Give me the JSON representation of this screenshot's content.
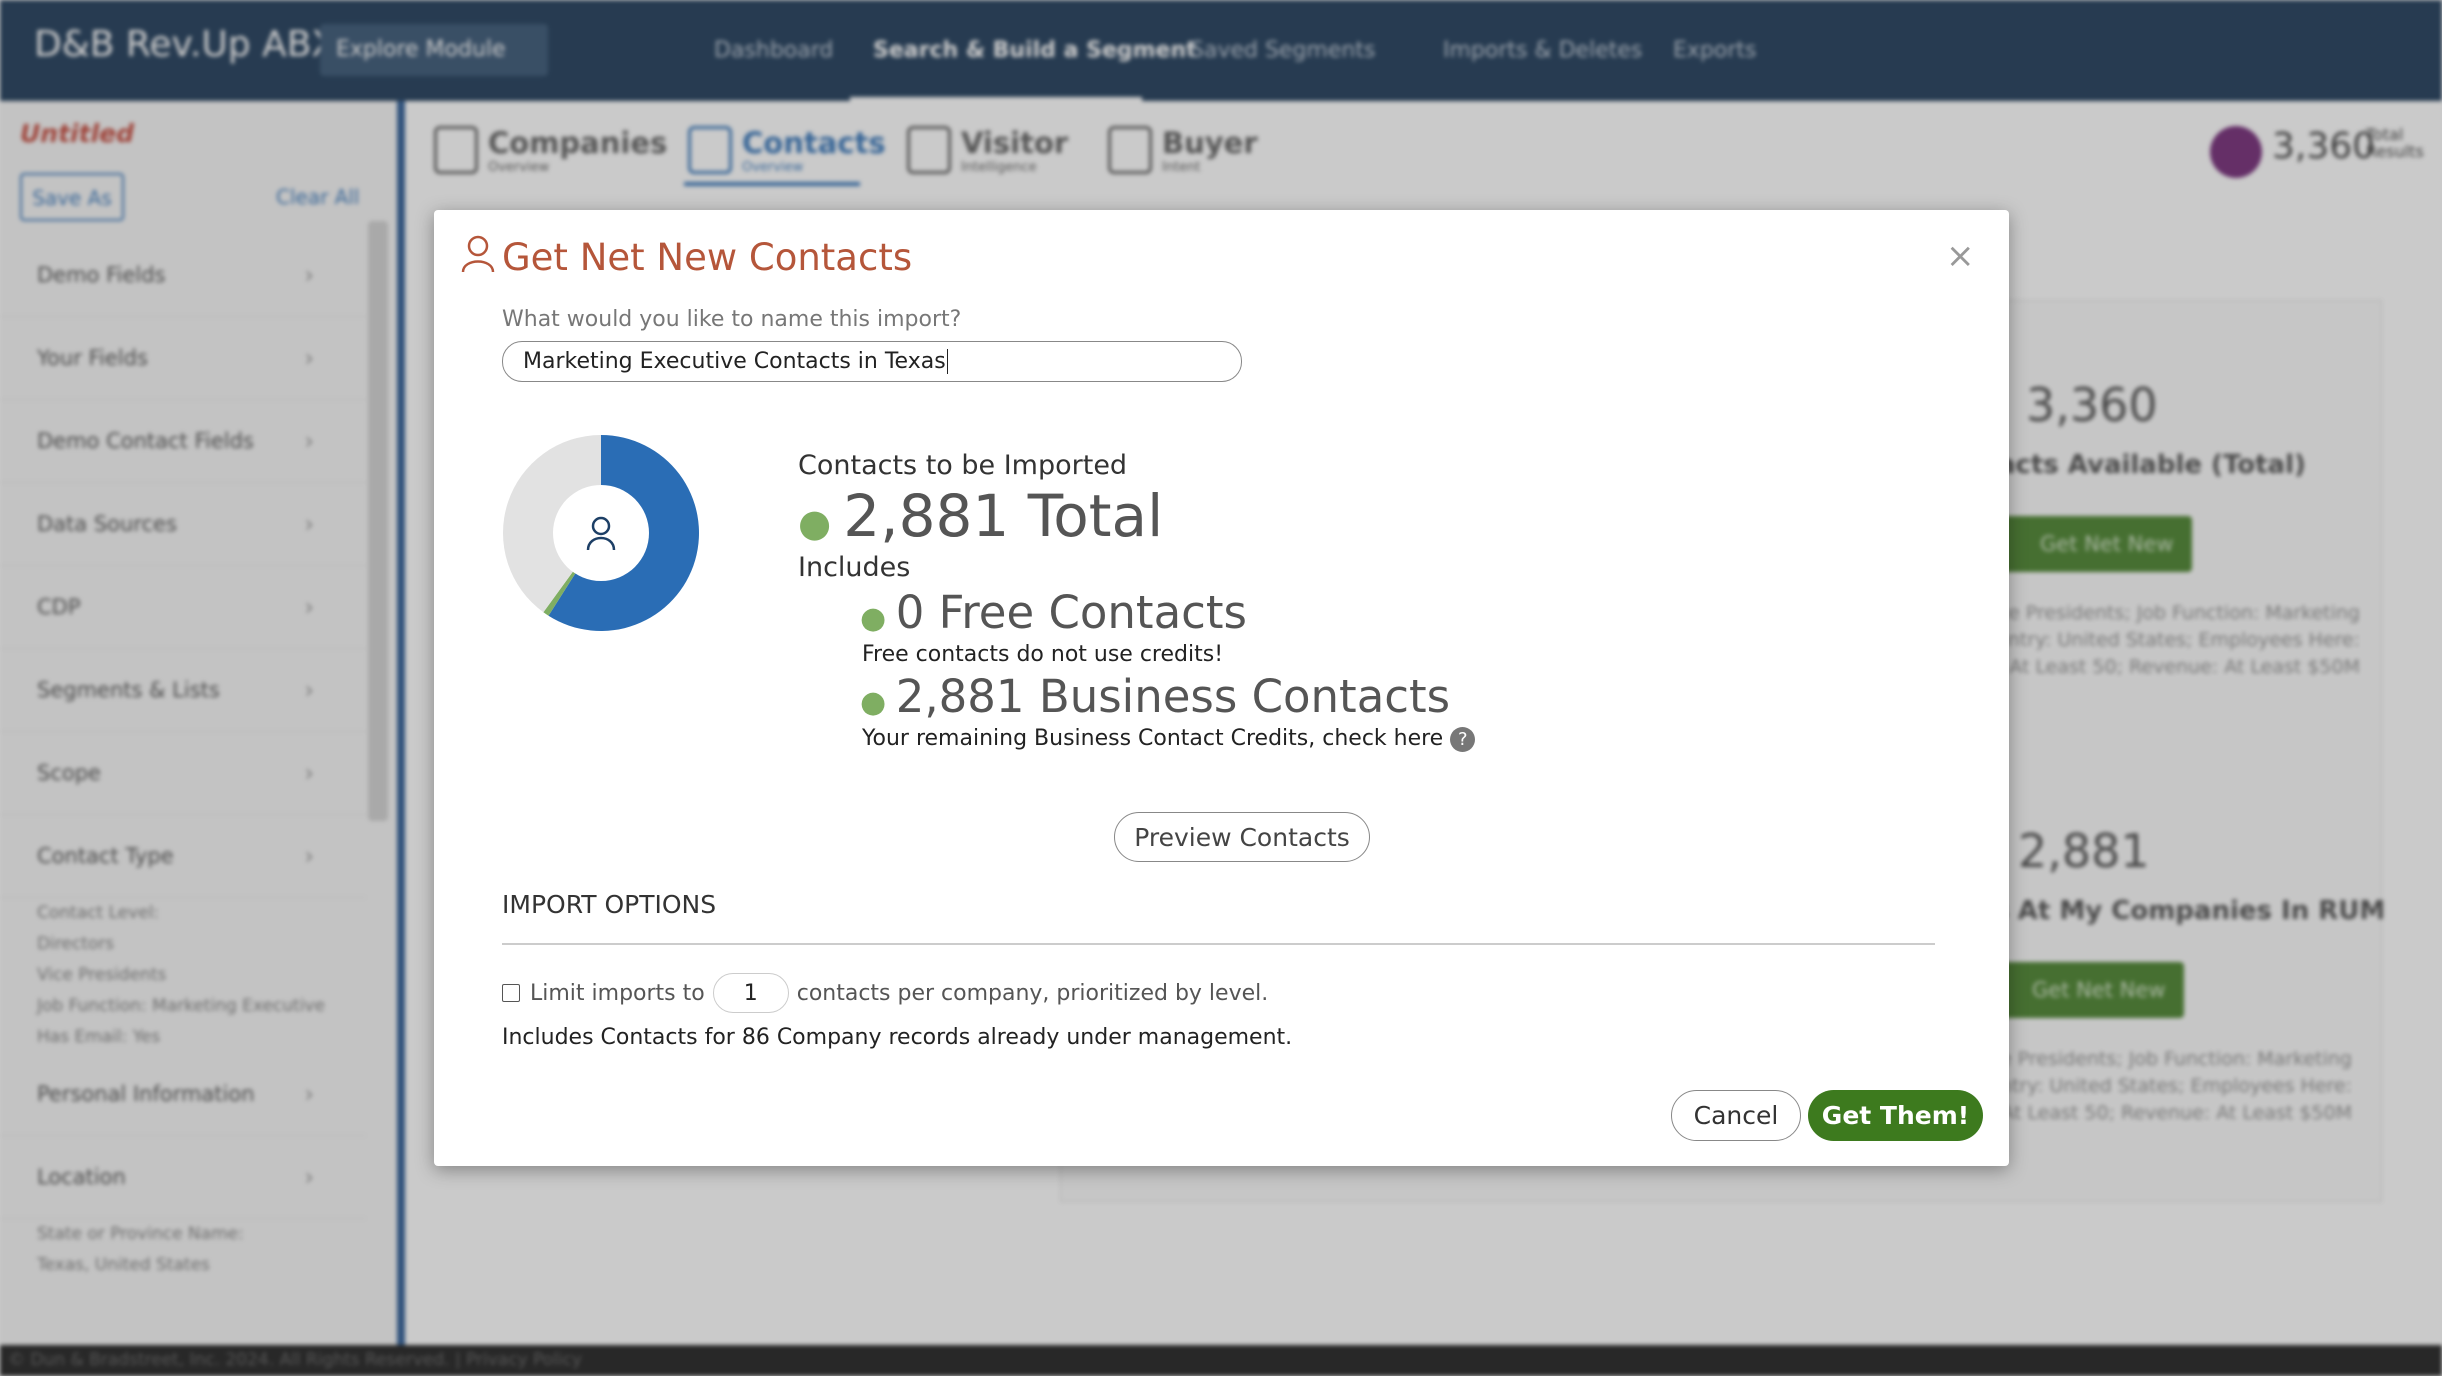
{
  "nav": {
    "brand": "D&B Rev.Up ABX",
    "module": "Explore Module",
    "items": [
      "Dashboard",
      "Search & Build a Segment",
      "Saved Segments",
      "Imports & Deletes",
      "Exports"
    ]
  },
  "sidebar": {
    "title": "Untitled",
    "save": "Save As",
    "clear": "Clear All",
    "sections": [
      {
        "label": "Demo Fields"
      },
      {
        "label": "Your Fields"
      },
      {
        "label": "Demo Contact Fields"
      },
      {
        "label": "Data Sources"
      },
      {
        "label": "CDP"
      },
      {
        "label": "Segments & Lists"
      },
      {
        "label": "Scope"
      },
      {
        "label": "Contact Type",
        "details": [
          "Contact Level:",
          "Directors",
          "Vice Presidents",
          "Job Function: Marketing Executive",
          "Has Email: Yes"
        ]
      },
      {
        "label": "Personal Information"
      },
      {
        "label": "Location",
        "details": [
          "State or Province Name:",
          "Texas, United States"
        ]
      }
    ]
  },
  "tabs": [
    {
      "title": "Companies",
      "sub": "Overview"
    },
    {
      "title": "Contacts",
      "sub": "Overview"
    },
    {
      "title": "Visitor",
      "sub": "Intelligence"
    },
    {
      "title": "Buyer",
      "sub": "Intent"
    }
  ],
  "total": {
    "value": "3,360",
    "label": "Total Results"
  },
  "cards": [
    {
      "value": "3,360",
      "label": "Contacts Available (Total)",
      "button": "Get Net New",
      "details": "Contact Level: Directors, Vice Presidents; Job Function: Marketing Executive; Has Email: Yes; Country: United States; Employees Here: At Least 50; Revenue: At Least $50M"
    },
    {
      "value": "2,881",
      "label": "Contacts At My Companies In RUM",
      "button": "Get Net New",
      "details": "Contact Level: Directors, Vice Presidents; Job Function: Marketing Executive; Has Email: Yes; Country: United States; Employees Here: At Least 50; Revenue: At Least $50M"
    }
  ],
  "footer": "© Dun & Bradstreet, Inc. 2024. All Rights Reserved. | Privacy Policy",
  "modal": {
    "title": "Get Net New Contacts",
    "name_label": "What would you like to name this import?",
    "name_value": "Marketing Executive Contacts in Texas",
    "donut": {
      "segments": [
        {
          "color": "#2a6db5",
          "value": 59
        },
        {
          "color": "#7fae62",
          "value": 1
        },
        {
          "color": "#e2e2e2",
          "value": 40
        }
      ]
    },
    "heading": "Contacts to be Imported",
    "total": "2,881 Total",
    "includes": "Includes",
    "free": "0 Free Contacts",
    "free_note": "Free contacts do not use credits!",
    "business": "2,881 Business Contacts",
    "business_note": "Your remaining Business Contact Credits, check here",
    "preview": "Preview Contacts",
    "options_title": "IMPORT OPTIONS",
    "limit_before": "Limit imports to",
    "limit_value": "1",
    "limit_after": "contacts per company, prioritized by level.",
    "management_note": "Includes Contacts for 86 Company records already under management.",
    "cancel": "Cancel",
    "confirm": "Get Them!"
  }
}
